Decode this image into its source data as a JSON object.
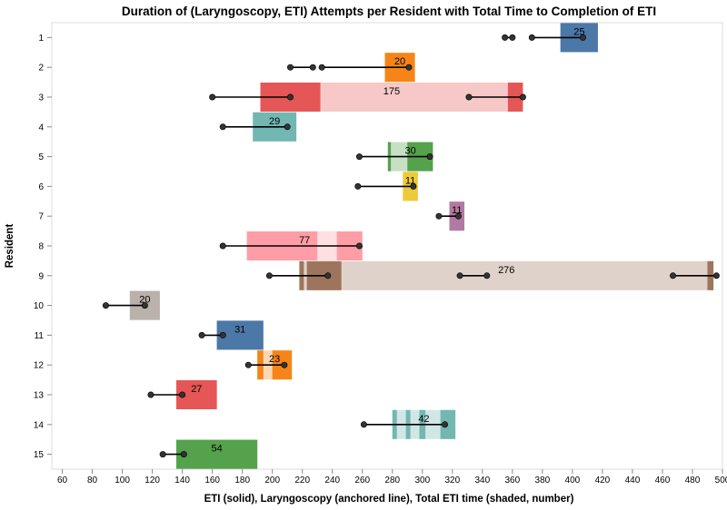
{
  "chart_data": {
    "type": "bar",
    "title": "Duration of (Laryngoscopy, ETI) Attempts per Resident with Total Time to Completion of ETI",
    "xlabel": "ETI (solid), Laryngoscopy (anchored line), Total ETI time (shaded, number)",
    "ylabel": "Resident",
    "xlim": [
      53,
      500
    ],
    "x_ticks": [
      60,
      80,
      100,
      120,
      140,
      160,
      180,
      200,
      220,
      240,
      260,
      280,
      300,
      320,
      340,
      360,
      380,
      400,
      420,
      440,
      460,
      480,
      500
    ],
    "residents": [
      "1",
      "2",
      "3",
      "4",
      "5",
      "6",
      "7",
      "8",
      "9",
      "10",
      "11",
      "12",
      "13",
      "14",
      "15"
    ],
    "grid": false,
    "rows": [
      {
        "resident": "1",
        "color": "#4c78a8",
        "total_label": "25",
        "total_range": [
          392,
          417
        ],
        "eti": [
          [
            392,
            417
          ]
        ],
        "laryngoscopy": [
          [
            355,
            360
          ],
          [
            373,
            407
          ]
        ]
      },
      {
        "resident": "2",
        "color": "#f58518",
        "total_label": "20",
        "total_range": [
          275,
          295
        ],
        "eti": [
          [
            275,
            295
          ]
        ],
        "laryngoscopy": [
          [
            212,
            227
          ],
          [
            233,
            291
          ]
        ]
      },
      {
        "resident": "3",
        "color": "#e45756",
        "total_label": "175",
        "total_range": [
          192,
          367
        ],
        "eti": [
          [
            192,
            232
          ],
          [
            357,
            367
          ]
        ],
        "laryngoscopy": [
          [
            160,
            212
          ],
          [
            331,
            367
          ]
        ]
      },
      {
        "resident": "4",
        "color": "#72b7b2",
        "total_label": "29",
        "total_range": [
          187,
          216
        ],
        "eti": [
          [
            187,
            216
          ]
        ],
        "laryngoscopy": [
          [
            167,
            210
          ]
        ]
      },
      {
        "resident": "5",
        "color": "#54a24b",
        "total_label": "30",
        "total_range": [
          277,
          307
        ],
        "eti": [
          [
            277,
            279
          ],
          [
            290,
            307
          ]
        ],
        "laryngoscopy": [
          [
            258,
            305
          ]
        ]
      },
      {
        "resident": "6",
        "color": "#eeca3b",
        "total_label": "11",
        "total_range": [
          287,
          297
        ],
        "eti": [
          [
            287,
            297
          ]
        ],
        "laryngoscopy": [
          [
            257,
            294
          ]
        ]
      },
      {
        "resident": "7",
        "color": "#b279a2",
        "total_label": "11",
        "total_range": [
          318,
          328
        ],
        "eti": [
          [
            318,
            328
          ]
        ],
        "laryngoscopy": [
          [
            311,
            324
          ]
        ]
      },
      {
        "resident": "8",
        "color": "#ff9da6",
        "total_label": "77",
        "total_range": [
          183,
          260
        ],
        "eti": [
          [
            183,
            230
          ],
          [
            243,
            260
          ]
        ],
        "laryngoscopy": [
          [
            167,
            258
          ]
        ]
      },
      {
        "resident": "9",
        "color": "#9d755d",
        "total_label": "276",
        "total_range": [
          218,
          494
        ],
        "eti": [
          [
            218,
            221
          ],
          [
            223,
            246
          ],
          [
            490,
            494
          ]
        ],
        "laryngoscopy": [
          [
            198,
            237
          ],
          [
            325,
            343
          ],
          [
            467,
            496
          ]
        ]
      },
      {
        "resident": "10",
        "color": "#bab0ac",
        "total_label": "20",
        "total_range": [
          105,
          125
        ],
        "eti": [
          [
            105,
            125
          ]
        ],
        "laryngoscopy": [
          [
            89,
            115
          ]
        ]
      },
      {
        "resident": "11",
        "color": "#4c78a8",
        "total_label": "31",
        "total_range": [
          163,
          194
        ],
        "eti": [
          [
            163,
            194
          ]
        ],
        "laryngoscopy": [
          [
            153,
            167
          ]
        ]
      },
      {
        "resident": "12",
        "color": "#f58518",
        "total_label": "23",
        "total_range": [
          190,
          213
        ],
        "eti": [
          [
            190,
            194
          ],
          [
            200,
            213
          ]
        ],
        "laryngoscopy": [
          [
            184,
            208
          ]
        ]
      },
      {
        "resident": "13",
        "color": "#e45756",
        "total_label": "27",
        "total_range": [
          136,
          163
        ],
        "eti": [
          [
            136,
            163
          ]
        ],
        "laryngoscopy": [
          [
            119,
            140
          ]
        ]
      },
      {
        "resident": "14",
        "color": "#72b7b2",
        "total_label": "42",
        "total_range": [
          280,
          322
        ],
        "eti": [
          [
            280,
            283
          ],
          [
            289,
            292
          ],
          [
            298,
            302
          ],
          [
            312,
            322
          ]
        ],
        "laryngoscopy": [
          [
            261,
            315
          ]
        ]
      },
      {
        "resident": "15",
        "color": "#54a24b",
        "total_label": "54",
        "total_range": [
          136,
          190
        ],
        "eti": [
          [
            136,
            190
          ]
        ],
        "laryngoscopy": [
          [
            127,
            141
          ]
        ]
      }
    ]
  }
}
